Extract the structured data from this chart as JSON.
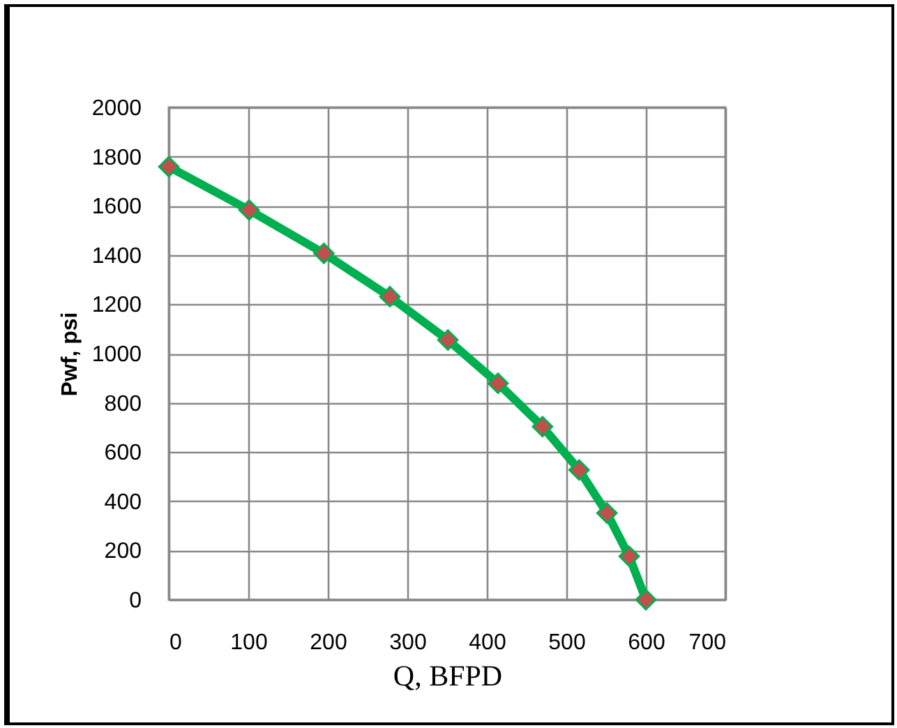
{
  "chart_data": {
    "type": "line",
    "xlabel": "Q, BFPD",
    "ylabel": "Pwf, psi",
    "series": [
      {
        "color": "#00b050",
        "colors": [
          "#c0504d",
          "#c0504d",
          "#c0504d",
          "#c0504d",
          "#c0504d",
          "#c0504d",
          "#c0504d",
          "#c0504d",
          "#c0504d",
          "#c0504d",
          "#c0504d"
        ],
        "x": [
          0,
          101,
          195,
          278,
          351,
          414,
          470,
          516,
          551,
          579,
          600
        ],
        "values": [
          1759,
          1583,
          1407,
          1231,
          1055,
          879,
          703,
          527,
          352,
          176,
          0
        ]
      }
    ],
    "xlim": [
      0,
      700
    ],
    "xticks": [
      0,
      100,
      200,
      300,
      400,
      500,
      600,
      700
    ],
    "ylim": [
      0,
      2000
    ],
    "yticks": [
      0,
      200,
      400,
      600,
      800,
      1000,
      1200,
      1400,
      1600,
      1800,
      2000
    ],
    "grid": true,
    "marker": "diamond",
    "line_style": "solid"
  }
}
